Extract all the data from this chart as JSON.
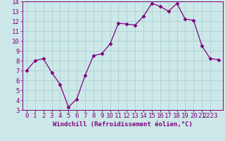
{
  "x": [
    0,
    1,
    2,
    3,
    4,
    5,
    6,
    7,
    8,
    9,
    10,
    11,
    12,
    13,
    14,
    15,
    16,
    17,
    18,
    19,
    20,
    21,
    22,
    23
  ],
  "y": [
    7.0,
    8.0,
    8.2,
    6.8,
    5.6,
    3.3,
    4.1,
    6.5,
    8.5,
    8.7,
    9.7,
    11.8,
    11.7,
    11.6,
    12.5,
    13.8,
    13.5,
    13.0,
    13.8,
    12.2,
    12.1,
    9.5,
    8.2,
    8.1
  ],
  "line_color": "#800080",
  "marker": "D",
  "markersize": 2.5,
  "linewidth": 0.9,
  "xlabel": "Windchill (Refroidissement éolien,°C)",
  "xlim": [
    -0.5,
    23.5
  ],
  "ylim": [
    3,
    14
  ],
  "yticks": [
    3,
    4,
    5,
    6,
    7,
    8,
    9,
    10,
    11,
    12,
    13,
    14
  ],
  "xtick_positions": [
    0,
    1,
    2,
    3,
    4,
    5,
    6,
    7,
    8,
    9,
    10,
    11,
    12,
    13,
    14,
    15,
    16,
    17,
    18,
    19,
    20,
    21,
    22
  ],
  "xtick_labels": [
    "0",
    "1",
    "2",
    "3",
    "4",
    "5",
    "6",
    "7",
    "8",
    "9",
    "10",
    "11",
    "12",
    "13",
    "14",
    "15",
    "16",
    "17",
    "18",
    "19",
    "20",
    "21",
    "2223"
  ],
  "background_color": "#cce8e8",
  "grid_color": "#aacccc",
  "spine_color": "#800080",
  "tick_color": "#800080",
  "xlabel_color": "#800080",
  "xlabel_fontsize": 6.5,
  "tick_fontsize": 6.5
}
